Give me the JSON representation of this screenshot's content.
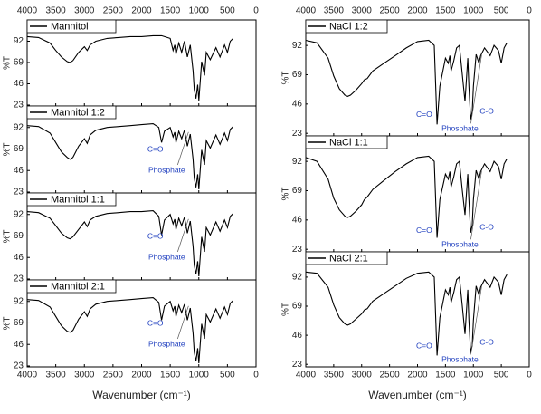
{
  "chart_data": [
    {
      "type": "line",
      "x": [
        4000,
        3800,
        3600,
        3500,
        3400,
        3300,
        3250,
        3200,
        3100,
        3000,
        2950,
        2900,
        2800,
        2600,
        2400,
        2200,
        2000,
        1800,
        1700,
        1650,
        1600,
        1500,
        1450,
        1420,
        1400,
        1350,
        1300,
        1250,
        1200,
        1150,
        1100,
        1080,
        1050,
        1020,
        1000,
        950,
        900,
        870,
        800,
        700,
        630,
        550,
        500,
        450,
        400
      ],
      "series": [
        {
          "name": "Mannitol",
          "color": "#000000",
          "values": [
            97,
            96,
            90,
            82,
            75,
            70,
            69,
            71,
            80,
            86,
            82,
            88,
            92,
            95,
            96,
            97,
            97,
            98,
            98,
            98,
            97,
            95,
            82,
            88,
            78,
            90,
            80,
            92,
            75,
            88,
            60,
            40,
            30,
            45,
            28,
            70,
            55,
            80,
            72,
            85,
            75,
            88,
            80,
            92,
            95
          ]
        }
      ],
      "xlim": [
        4000,
        0
      ],
      "xticks": [
        4000,
        3500,
        3000,
        2500,
        2000,
        1500,
        1000,
        500,
        0
      ],
      "ylim": [
        22,
        115
      ],
      "yticks": [
        23,
        46,
        69,
        92
      ],
      "ylabel": "%T"
    },
    {
      "type": "line",
      "x": [
        4000,
        3800,
        3600,
        3500,
        3400,
        3300,
        3250,
        3200,
        3100,
        3000,
        2950,
        2900,
        2800,
        2600,
        2400,
        2200,
        2000,
        1800,
        1700,
        1650,
        1600,
        1500,
        1450,
        1420,
        1400,
        1350,
        1300,
        1250,
        1200,
        1150,
        1100,
        1080,
        1050,
        1020,
        1000,
        950,
        900,
        870,
        800,
        700,
        630,
        550,
        500,
        450,
        400
      ],
      "series": [
        {
          "name": "Mannitol 1:2",
          "color": "#000000",
          "values": [
            94,
            93,
            86,
            76,
            66,
            60,
            58,
            60,
            72,
            80,
            75,
            84,
            89,
            92,
            93,
            94,
            95,
            96,
            92,
            76,
            88,
            92,
            82,
            87,
            76,
            88,
            80,
            89,
            72,
            85,
            58,
            38,
            28,
            42,
            26,
            68,
            52,
            78,
            70,
            84,
            74,
            86,
            78,
            90,
            93
          ]
        }
      ],
      "xlim": [
        4000,
        0
      ],
      "xticks": [
        4000,
        3500,
        3000,
        2500,
        2000,
        1500,
        1000,
        500,
        0
      ],
      "ylim": [
        22,
        115
      ],
      "yticks": [
        23,
        46,
        69,
        92
      ],
      "ylabel": "%T",
      "annotations": [
        "C=O",
        "Phosphate"
      ]
    },
    {
      "type": "line",
      "x": [
        4000,
        3800,
        3600,
        3500,
        3400,
        3300,
        3250,
        3200,
        3100,
        3000,
        2950,
        2900,
        2800,
        2600,
        2400,
        2200,
        2000,
        1800,
        1700,
        1650,
        1600,
        1500,
        1450,
        1420,
        1400,
        1350,
        1300,
        1250,
        1200,
        1150,
        1100,
        1080,
        1050,
        1020,
        1000,
        950,
        900,
        870,
        800,
        700,
        630,
        550,
        500,
        450,
        400
      ],
      "series": [
        {
          "name": "Mannitol 1:1",
          "color": "#000000",
          "values": [
            95,
            94,
            88,
            80,
            72,
            67,
            66,
            68,
            76,
            84,
            79,
            86,
            90,
            93,
            94,
            95,
            95,
            96,
            90,
            70,
            86,
            92,
            82,
            87,
            76,
            88,
            80,
            89,
            72,
            85,
            58,
            38,
            28,
            42,
            26,
            68,
            52,
            78,
            70,
            84,
            74,
            86,
            78,
            90,
            93
          ]
        }
      ],
      "xlim": [
        4000,
        0
      ],
      "xticks": [
        4000,
        3500,
        3000,
        2500,
        2000,
        1500,
        1000,
        500,
        0
      ],
      "ylim": [
        22,
        115
      ],
      "yticks": [
        23,
        46,
        69,
        92
      ],
      "ylabel": "%T",
      "annotations": [
        "C=O",
        "Phosphate"
      ]
    },
    {
      "type": "line",
      "x": [
        4000,
        3800,
        3600,
        3500,
        3400,
        3300,
        3250,
        3200,
        3100,
        3000,
        2950,
        2900,
        2800,
        2600,
        2400,
        2200,
        2000,
        1800,
        1700,
        1650,
        1600,
        1500,
        1450,
        1420,
        1400,
        1350,
        1300,
        1250,
        1200,
        1150,
        1100,
        1080,
        1050,
        1020,
        1000,
        950,
        900,
        870,
        800,
        700,
        630,
        550,
        500,
        450,
        400
      ],
      "series": [
        {
          "name": "Mannitol 2:1",
          "color": "#000000",
          "values": [
            94,
            93,
            86,
            76,
            66,
            60,
            59,
            61,
            73,
            81,
            76,
            84,
            89,
            92,
            93,
            94,
            95,
            96,
            91,
            72,
            87,
            92,
            82,
            87,
            76,
            88,
            80,
            89,
            72,
            85,
            58,
            38,
            28,
            42,
            26,
            68,
            52,
            78,
            70,
            84,
            74,
            86,
            78,
            90,
            93
          ]
        }
      ],
      "xlim": [
        4000,
        0
      ],
      "xticks": [
        4000,
        3500,
        3000,
        2500,
        2000,
        1500,
        1000,
        500,
        0
      ],
      "ylim": [
        22,
        115
      ],
      "yticks": [
        23,
        46,
        69,
        92
      ],
      "ylabel": "%T",
      "annotations": [
        "C=O",
        "Phosphate"
      ],
      "xlabel": "Wavenumber (cm⁻¹)"
    },
    {
      "type": "line",
      "x": [
        4000,
        3800,
        3600,
        3500,
        3400,
        3300,
        3250,
        3200,
        3100,
        3000,
        2950,
        2900,
        2800,
        2600,
        2400,
        2200,
        2000,
        1800,
        1700,
        1650,
        1600,
        1500,
        1450,
        1420,
        1400,
        1350,
        1300,
        1250,
        1200,
        1150,
        1100,
        1080,
        1050,
        1020,
        1000,
        950,
        900,
        870,
        800,
        700,
        630,
        550,
        500,
        450,
        400
      ],
      "series": [
        {
          "name": "NaCl 1:2",
          "color": "#000000",
          "values": [
            96,
            94,
            82,
            68,
            58,
            53,
            52,
            53,
            57,
            62,
            65,
            66,
            72,
            78,
            84,
            90,
            95,
            96,
            92,
            30,
            60,
            82,
            78,
            84,
            72,
            80,
            90,
            92,
            70,
            48,
            82,
            60,
            34,
            40,
            60,
            85,
            78,
            84,
            90,
            84,
            92,
            88,
            78,
            90,
            94
          ]
        }
      ],
      "xlim": [
        4000,
        0
      ],
      "xticks": [
        4000,
        3500,
        3000,
        2500,
        2000,
        1500,
        1000,
        500,
        0
      ],
      "ylim": [
        21,
        112
      ],
      "yticks": [
        23,
        46,
        69,
        92
      ],
      "ylabel": "%T",
      "annotations": [
        "C=O",
        "Phosphate",
        "C-O"
      ]
    },
    {
      "type": "line",
      "x": [
        4000,
        3800,
        3600,
        3500,
        3400,
        3300,
        3250,
        3200,
        3100,
        3000,
        2950,
        2900,
        2800,
        2600,
        2400,
        2200,
        2000,
        1800,
        1700,
        1650,
        1600,
        1500,
        1450,
        1420,
        1400,
        1350,
        1300,
        1250,
        1200,
        1150,
        1100,
        1080,
        1050,
        1020,
        1000,
        950,
        900,
        870,
        800,
        700,
        630,
        550,
        500,
        450,
        400
      ],
      "series": [
        {
          "name": "NaCl 1:1",
          "color": "#000000",
          "values": [
            95,
            92,
            78,
            63,
            54,
            49,
            48,
            49,
            53,
            58,
            62,
            64,
            70,
            77,
            84,
            90,
            95,
            96,
            92,
            32,
            62,
            82,
            78,
            84,
            72,
            80,
            90,
            92,
            70,
            50,
            82,
            62,
            36,
            42,
            62,
            85,
            78,
            84,
            90,
            84,
            92,
            88,
            78,
            90,
            94
          ]
        }
      ],
      "xlim": [
        4000,
        0
      ],
      "xticks": [
        4000,
        3500,
        3000,
        2500,
        2000,
        1500,
        1000,
        500,
        0
      ],
      "ylim": [
        21,
        112
      ],
      "yticks": [
        23,
        46,
        69,
        92
      ],
      "ylabel": "%T",
      "annotations": [
        "C=O",
        "Phosphate",
        "C-O"
      ]
    },
    {
      "type": "line",
      "x": [
        4000,
        3800,
        3600,
        3500,
        3400,
        3300,
        3250,
        3200,
        3100,
        3000,
        2950,
        2900,
        2800,
        2600,
        2400,
        2200,
        2000,
        1800,
        1700,
        1650,
        1600,
        1500,
        1450,
        1420,
        1400,
        1350,
        1300,
        1250,
        1200,
        1150,
        1100,
        1080,
        1050,
        1020,
        1000,
        950,
        900,
        870,
        800,
        700,
        630,
        550,
        500,
        450,
        400
      ],
      "series": [
        {
          "name": "NaCl 2:1",
          "color": "#000000",
          "values": [
            96,
            95,
            84,
            70,
            60,
            55,
            54,
            55,
            59,
            63,
            66,
            67,
            73,
            79,
            85,
            91,
            95,
            96,
            92,
            30,
            60,
            82,
            78,
            84,
            72,
            80,
            90,
            92,
            70,
            47,
            82,
            58,
            32,
            38,
            58,
            85,
            78,
            84,
            90,
            84,
            92,
            88,
            78,
            90,
            94
          ]
        }
      ],
      "xlim": [
        4000,
        0
      ],
      "xticks": [
        4000,
        3500,
        3000,
        2500,
        2000,
        1500,
        1000,
        500,
        0
      ],
      "ylim": [
        21,
        112
      ],
      "yticks": [
        23,
        46,
        69,
        92
      ],
      "ylabel": "%T",
      "annotations": [
        "C=O",
        "Phosphate",
        "C-O"
      ],
      "xlabel": "Wavenumber (cm⁻¹)"
    }
  ]
}
